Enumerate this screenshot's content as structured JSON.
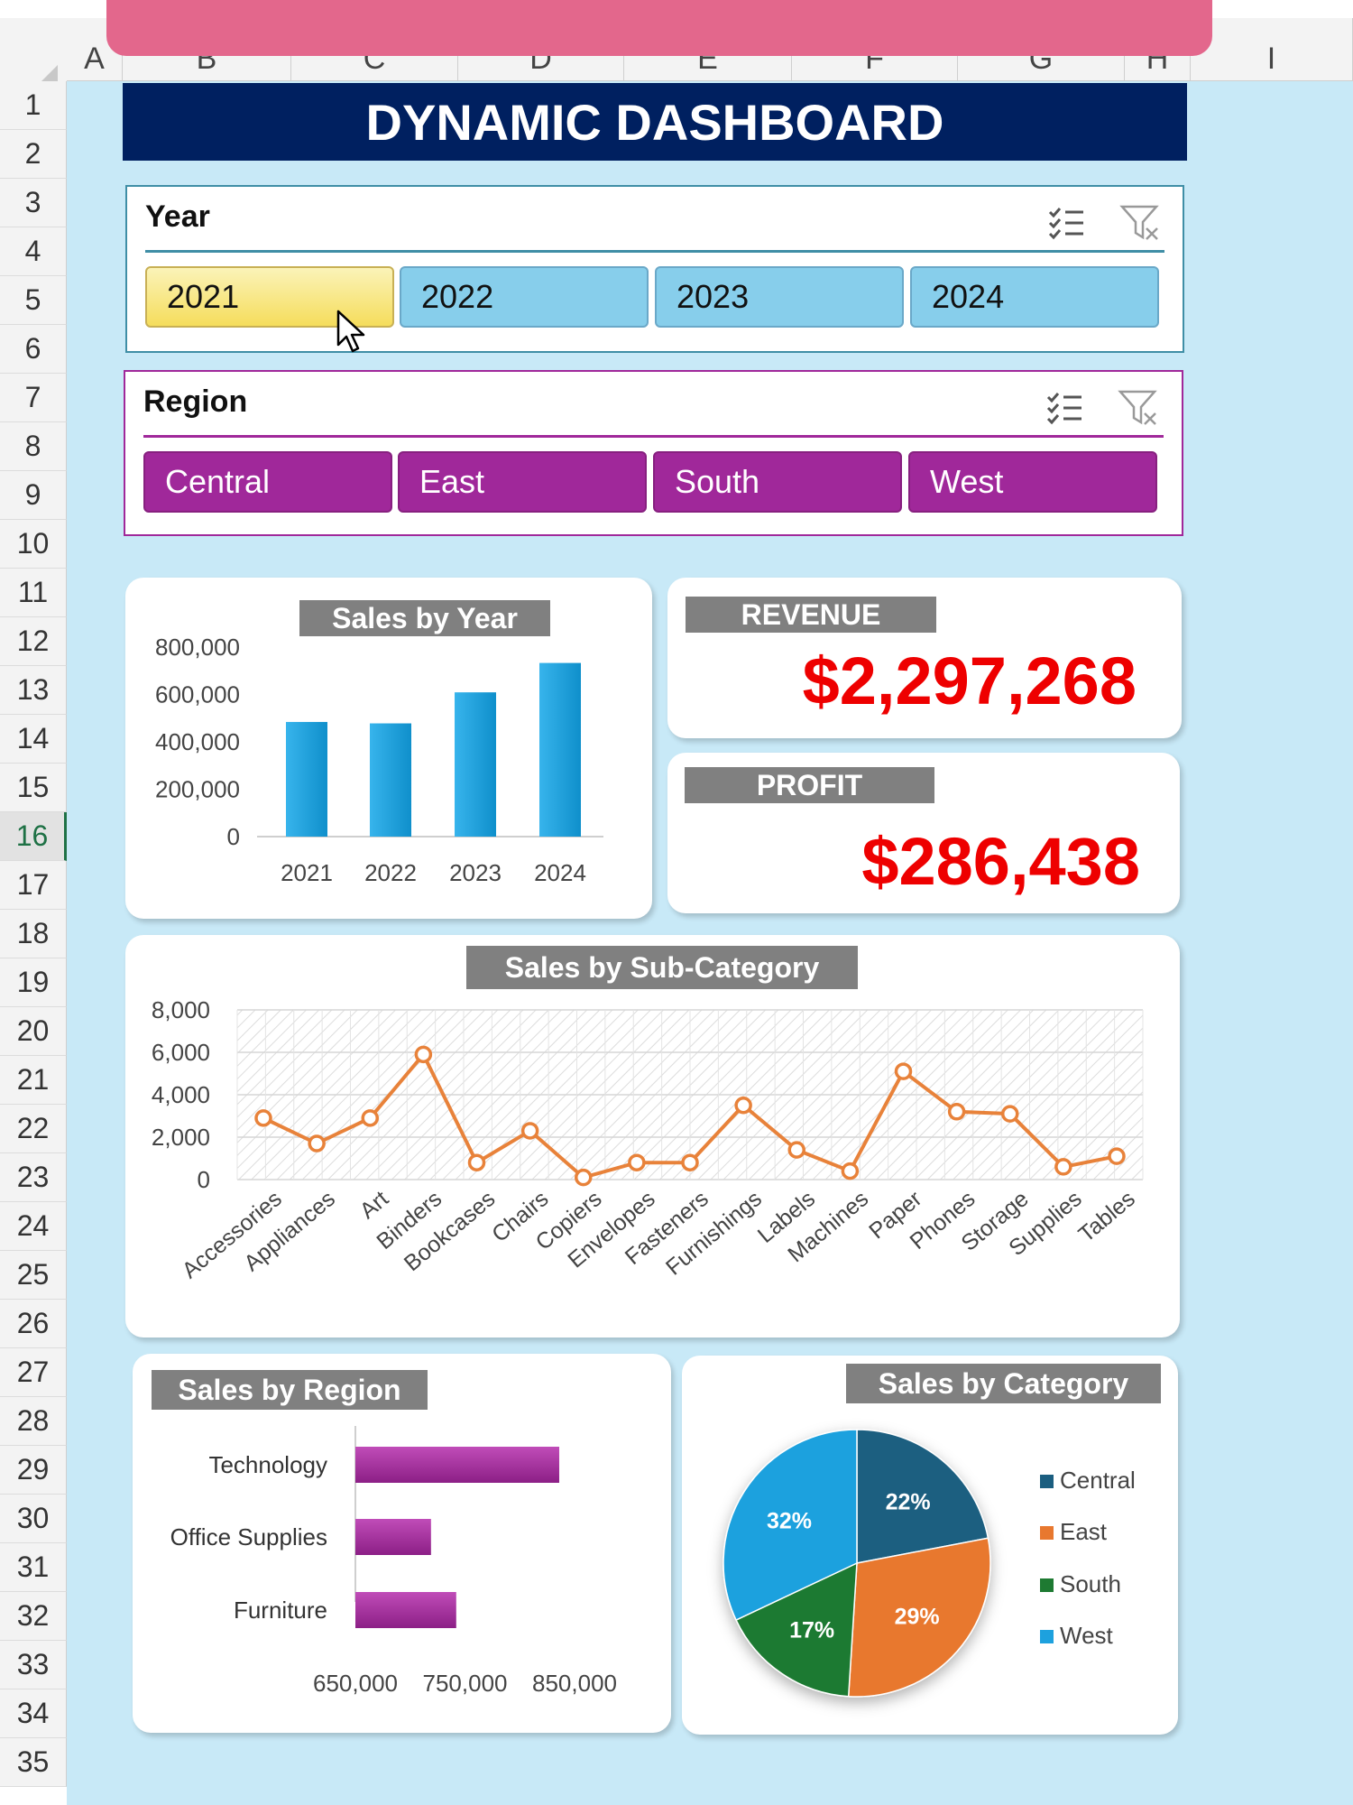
{
  "columns": [
    "A",
    "B",
    "C",
    "D",
    "E",
    "F",
    "G",
    "H",
    "I"
  ],
  "rows": [
    "1",
    "2",
    "3",
    "4",
    "5",
    "6",
    "7",
    "8",
    "9",
    "10",
    "11",
    "12",
    "13",
    "14",
    "15",
    "16",
    "17",
    "18",
    "19",
    "20",
    "21",
    "22",
    "23",
    "24",
    "25",
    "26",
    "27",
    "28",
    "29",
    "30",
    "31",
    "32",
    "33",
    "34",
    "35"
  ],
  "active_row": "16",
  "dashboard_title": "DYNAMIC DASHBOARD",
  "year_slicer": {
    "title": "Year",
    "items": [
      "2021",
      "2022",
      "2023",
      "2024"
    ],
    "selected": "2021"
  },
  "region_slicer": {
    "title": "Region",
    "items": [
      "Central",
      "East",
      "South",
      "West"
    ]
  },
  "kpis": {
    "revenue_label": "REVENUE",
    "revenue_value": "$2,297,268",
    "profit_label": "PROFIT",
    "profit_value": "$286,438"
  },
  "colors": {
    "header_navy": "#002060",
    "sheet_bg": "#c8e9f7",
    "year_selected": "#fce87a",
    "year_unselected": "#87ceeb",
    "region_purple": "#a0289a",
    "kpi_red": "#ee0000",
    "bar_blue": "#1a9fd9",
    "line_orange": "#e8823a"
  },
  "chart_data": [
    {
      "type": "bar",
      "title": "Sales by Year",
      "categories": [
        "2021",
        "2022",
        "2023",
        "2024"
      ],
      "values": [
        484000,
        478000,
        609000,
        733000
      ],
      "ylim": [
        0,
        800000
      ],
      "yticks": [
        "0",
        "200,000",
        "400,000",
        "600,000",
        "800,000"
      ]
    },
    {
      "type": "line",
      "title": "Sales  by Sub-Category",
      "categories": [
        "Accessories",
        "Appliances",
        "Art",
        "Binders",
        "Bookcases",
        "Chairs",
        "Copiers",
        "Envelopes",
        "Fasteners",
        "Furnishings",
        "Labels",
        "Machines",
        "Paper",
        "Phones",
        "Storage",
        "Supplies",
        "Tables"
      ],
      "values": [
        2900,
        1700,
        2900,
        5900,
        800,
        2300,
        100,
        800,
        800,
        3500,
        1400,
        400,
        5100,
        3200,
        3100,
        600,
        1100
      ],
      "ylim": [
        0,
        8000
      ],
      "yticks": [
        "0",
        "2,000",
        "4,000",
        "6,000",
        "8,000"
      ]
    },
    {
      "type": "bar",
      "orientation": "horizontal",
      "title": "Sales by Region",
      "categories": [
        "Technology",
        "Office Supplies",
        "Furniture"
      ],
      "values": [
        836000,
        719000,
        742000
      ],
      "xlim": [
        650000,
        880000
      ],
      "xticks": [
        "650,000",
        "750,000",
        "850,000"
      ]
    },
    {
      "type": "pie",
      "title": "Sales by Category",
      "labels": [
        "Central",
        "East",
        "South",
        "West"
      ],
      "values": [
        22,
        29,
        17,
        32
      ],
      "value_labels": [
        "22%",
        "29%",
        "17%",
        "32%"
      ],
      "colors": [
        "#1b5e80",
        "#e8782f",
        "#1e7a32",
        "#1da1de"
      ],
      "legend": "right"
    }
  ]
}
